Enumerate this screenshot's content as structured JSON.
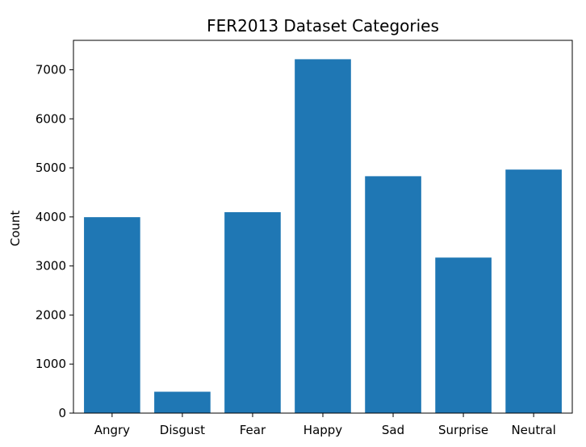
{
  "chart_data": {
    "type": "bar",
    "title": "FER2013 Dataset Categories",
    "xlabel": "",
    "ylabel": "Count",
    "categories": [
      "Angry",
      "Disgust",
      "Fear",
      "Happy",
      "Sad",
      "Surprise",
      "Neutral"
    ],
    "values": [
      3995,
      436,
      4097,
      7215,
      4830,
      3171,
      4965
    ],
    "ylim": [
      0,
      7600
    ],
    "yticks": [
      0,
      1000,
      2000,
      3000,
      4000,
      5000,
      6000,
      7000
    ],
    "ytick_labels": [
      "0",
      "1000",
      "2000",
      "3000",
      "4000",
      "5000",
      "6000",
      "7000"
    ],
    "grid": false,
    "legend": "none",
    "colors": {
      "bar": "#1f77b4",
      "axis": "#000000",
      "background": "#ffffff"
    }
  }
}
